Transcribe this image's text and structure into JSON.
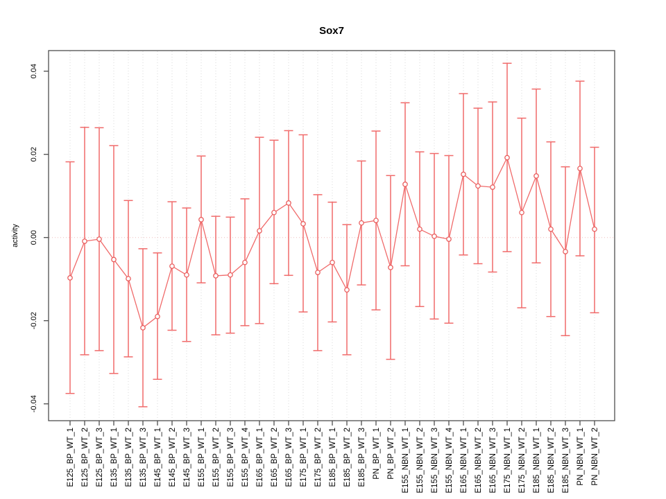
{
  "window": {
    "background": "#ffffff"
  },
  "chart_data": {
    "type": "scatter",
    "error_bars": true,
    "connected": true,
    "title": "Sox7",
    "xlabel": "",
    "ylabel": "activity",
    "ylim": [
      -0.044,
      0.045
    ],
    "yticks": [
      -0.04,
      -0.02,
      0.0,
      0.02,
      0.04
    ],
    "ytick_labels": [
      "-0.04",
      "-0.02",
      "0.00",
      "0.02",
      "0.04"
    ],
    "grid": "vertical dotted gridline at each category; horizontal dotted line at y=0",
    "legend": "none",
    "categories": [
      "E125_BP_WT_1",
      "E125_BP_WT_2",
      "E125_BP_WT_3",
      "E135_BP_WT_1",
      "E135_BP_WT_2",
      "E135_BP_WT_3",
      "E145_BP_WT_1",
      "E145_BP_WT_2",
      "E145_BP_WT_3",
      "E155_BP_WT_1",
      "E155_BP_WT_2",
      "E155_BP_WT_3",
      "E155_BP_WT_4",
      "E165_BP_WT_1",
      "E165_BP_WT_2",
      "E165_BP_WT_3",
      "E175_BP_WT_1",
      "E175_BP_WT_2",
      "E185_BP_WT_1",
      "E185_BP_WT_2",
      "E185_BP_WT_3",
      "PN_BP_WT_1",
      "PN_BP_WT_2",
      "E155_NBN_WT_1",
      "E155_NBN_WT_2",
      "E155_NBN_WT_3",
      "E155_NBN_WT_4",
      "E165_NBN_WT_1",
      "E165_NBN_WT_2",
      "E165_NBN_WT_3",
      "E175_NBN_WT_1",
      "E175_NBN_WT_2",
      "E185_NBN_WT_1",
      "E185_NBN_WT_2",
      "E185_NBN_WT_3",
      "PN_NBN_WT_1",
      "PN_NBN_WT_2"
    ],
    "series": [
      {
        "name": "activity",
        "values": [
          -0.0097,
          -0.0009,
          -0.0004,
          -0.0053,
          -0.0099,
          -0.0217,
          -0.019,
          -0.0069,
          -0.009,
          0.0043,
          -0.0092,
          -0.009,
          -0.006,
          0.0016,
          0.006,
          0.0083,
          0.0033,
          -0.0084,
          -0.006,
          -0.0126,
          0.0035,
          0.0041,
          -0.0072,
          0.0128,
          0.002,
          0.0003,
          -0.0004,
          0.0152,
          0.0124,
          0.0121,
          0.0192,
          0.006,
          0.0148,
          0.002,
          -0.0034,
          0.0166,
          0.002
        ],
        "upper": [
          0.0182,
          0.0265,
          0.0264,
          0.0221,
          0.0089,
          -0.0027,
          -0.0037,
          0.0086,
          0.0071,
          0.0196,
          0.0051,
          0.0049,
          0.0093,
          0.0241,
          0.0234,
          0.0257,
          0.0247,
          0.0103,
          0.0085,
          0.0031,
          0.0184,
          0.0256,
          0.0149,
          0.0324,
          0.0206,
          0.0202,
          0.0197,
          0.0346,
          0.0311,
          0.0326,
          0.0419,
          0.0287,
          0.0357,
          0.023,
          0.017,
          0.0376,
          0.0217
        ],
        "lower": [
          -0.0375,
          -0.0282,
          -0.0272,
          -0.0327,
          -0.0287,
          -0.0407,
          -0.0341,
          -0.0223,
          -0.025,
          -0.0109,
          -0.0234,
          -0.023,
          -0.0212,
          -0.0207,
          -0.0111,
          -0.0091,
          -0.0179,
          -0.0272,
          -0.0203,
          -0.0282,
          -0.0114,
          -0.0174,
          -0.0293,
          -0.0068,
          -0.0166,
          -0.0196,
          -0.0206,
          -0.0042,
          -0.0063,
          -0.0083,
          -0.0034,
          -0.0169,
          -0.0061,
          -0.019,
          -0.0236,
          -0.0044,
          -0.0181
        ]
      }
    ]
  },
  "style": {
    "series_color": "#f06a6a",
    "point_stroke": "#ea5f5f",
    "point_fill": "#ffffff",
    "grid_color": "#dadada",
    "zero_line_color": "#eebbbb",
    "axis_color": "#4d4d4d",
    "text_color": "#000000",
    "background": "#ffffff"
  }
}
